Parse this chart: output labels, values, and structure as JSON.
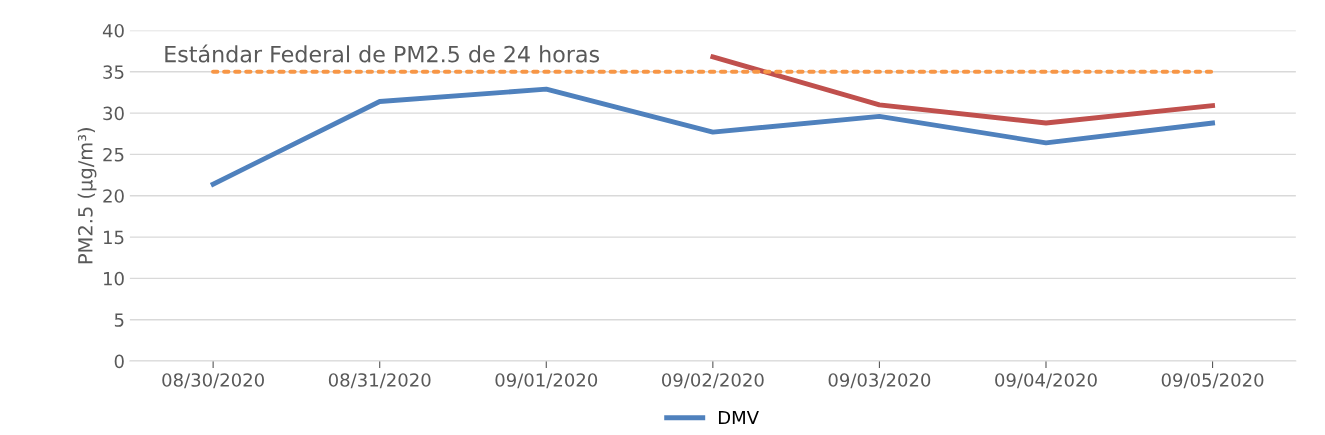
{
  "chart_data": {
    "type": "line",
    "ylabel": "PM2.5 (µg/m³)",
    "categories": [
      "08/30/2020",
      "08/31/2020",
      "09/01/2020",
      "09/02/2020",
      "09/03/2020",
      "09/04/2020",
      "09/05/2020"
    ],
    "series": [
      {
        "name": "DMV",
        "color": "#4f81bd",
        "values": [
          21.4,
          31.4,
          32.9,
          27.7,
          29.6,
          26.4,
          28.8
        ]
      },
      {
        "color": "#c0504d",
        "values": [
          null,
          null,
          null,
          36.8,
          31.0,
          28.8,
          30.9
        ]
      }
    ],
    "ref_lines": [
      {
        "axis": "y",
        "value": 35,
        "label": "Estándar Federal de PM2.5 de 24 horas",
        "color": "#f79646",
        "line_style": "dotted"
      }
    ],
    "ylim": [
      0,
      40
    ],
    "yticks": [
      0,
      5,
      10,
      15,
      20,
      25,
      30,
      35,
      40
    ],
    "grid": "y",
    "legend": "bottom",
    "marker": "none",
    "line_style": "solid"
  }
}
